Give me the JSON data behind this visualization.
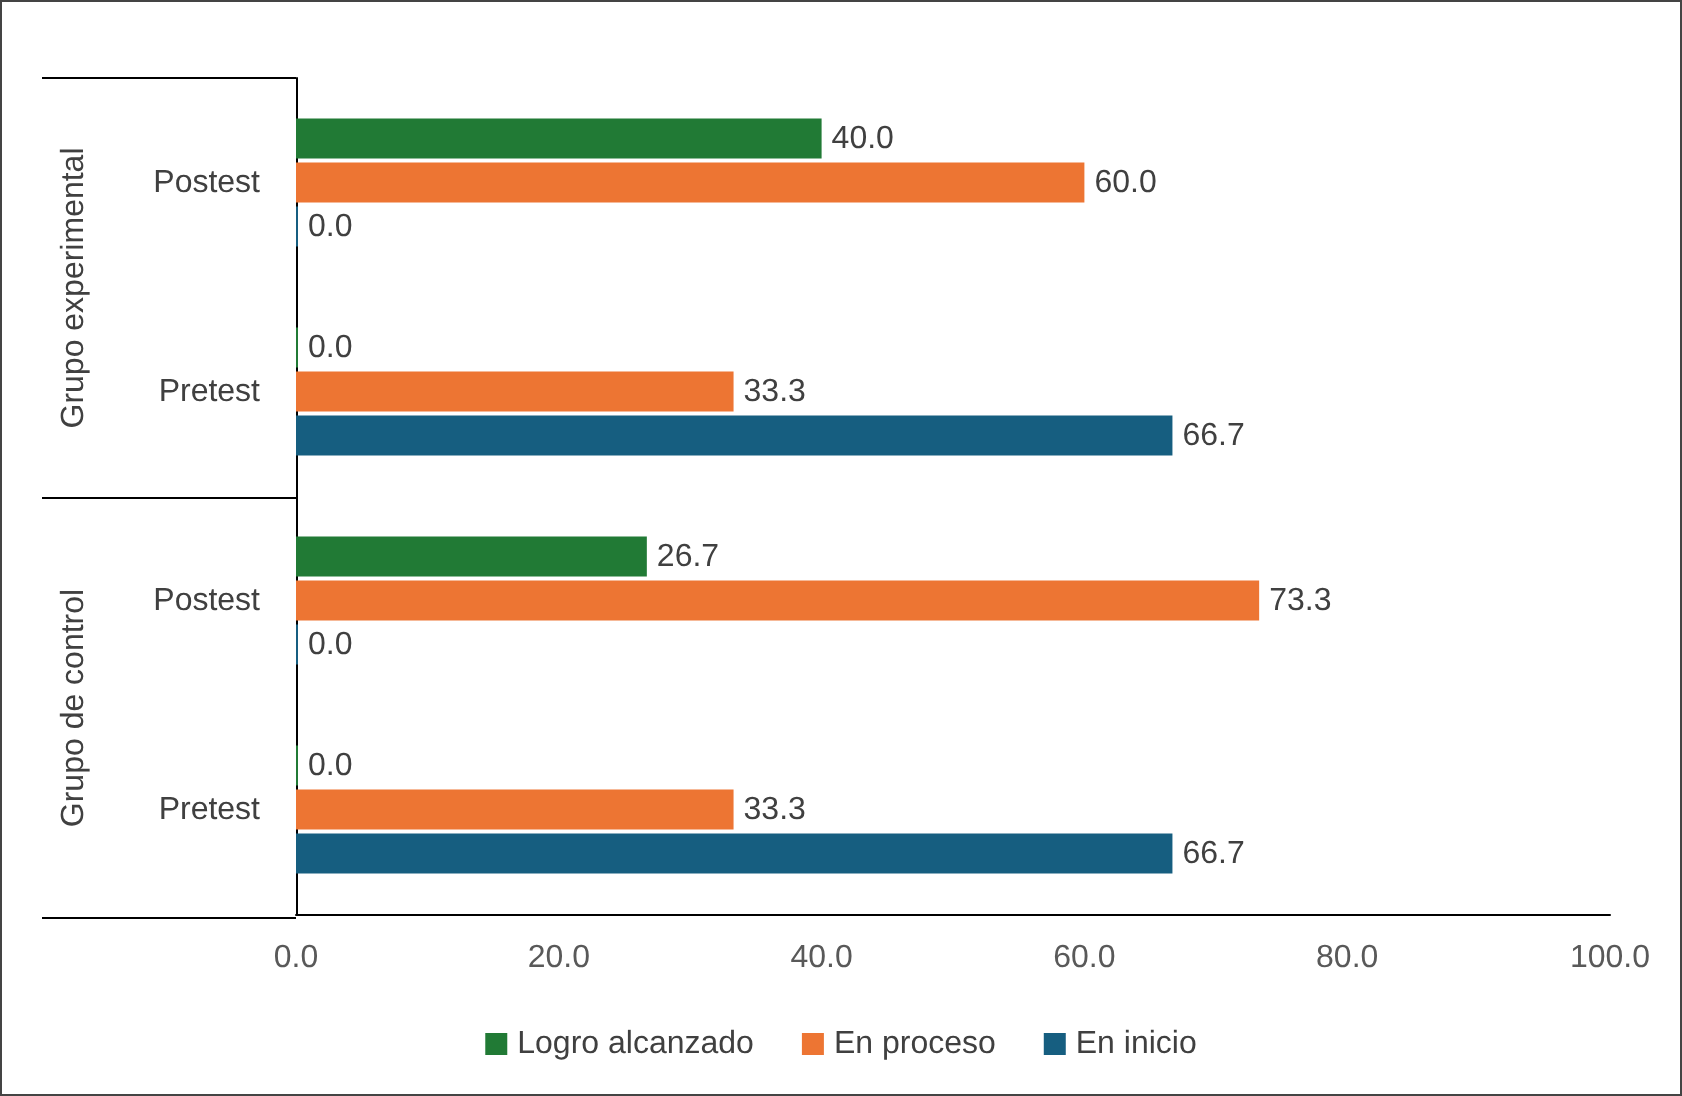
{
  "chart_data": {
    "type": "bar",
    "orientation": "horizontal",
    "categories": [
      "Postest",
      "Pretest",
      "Postest",
      "Pretest"
    ],
    "annotations": [
      "Grupo experimental",
      "Grupo de control"
    ],
    "series": [
      {
        "name": "Logro alcanzado",
        "color": "#217a35",
        "values": [
          40.0,
          0.0,
          26.7,
          0.0
        ],
        "value_labels": [
          "40.0",
          "0.0",
          "26.7",
          "0.0"
        ]
      },
      {
        "name": "En proceso",
        "color": "#ed7533",
        "values": [
          60.0,
          33.3,
          73.3,
          33.3
        ],
        "value_labels": [
          "60.0",
          "33.3",
          "73.3",
          "33.3"
        ]
      },
      {
        "name": "En inicio",
        "color": "#165e80",
        "values": [
          0.0,
          66.7,
          0.0,
          66.7
        ],
        "value_labels": [
          "0.0",
          "66.7",
          "0.0",
          "66.7"
        ]
      }
    ],
    "xlim": [
      0,
      100
    ],
    "xticks": [
      {
        "value": 0,
        "label": "0.0"
      },
      {
        "value": 20,
        "label": "20.0"
      },
      {
        "value": 40,
        "label": "40.0"
      },
      {
        "value": 60,
        "label": "60.0"
      },
      {
        "value": 80,
        "label": "80.0"
      },
      {
        "value": 100,
        "label": "100.0"
      }
    ],
    "grid": false,
    "legend": "bottom"
  }
}
